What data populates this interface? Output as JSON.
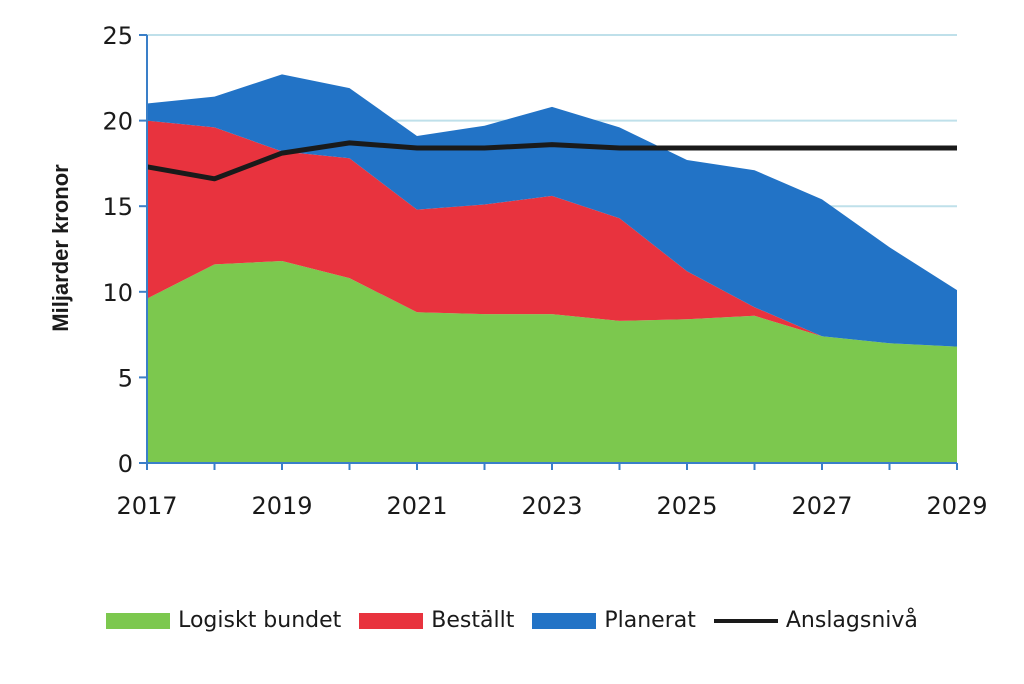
{
  "chart_data": {
    "type": "area",
    "x": [
      2017,
      2018,
      2019,
      2020,
      2021,
      2022,
      2023,
      2024,
      2025,
      2026,
      2027,
      2028,
      2029
    ],
    "x_ticks": [
      2017,
      2019,
      2021,
      2023,
      2025,
      2027,
      2029
    ],
    "x_tick_labels": [
      "2017",
      "2019",
      "2021",
      "2023",
      "2025",
      "2027",
      "2029"
    ],
    "ylim": [
      0,
      25
    ],
    "y_ticks": [
      0,
      5,
      10,
      15,
      20,
      25
    ],
    "y_tick_labels": [
      "0",
      "5",
      "10",
      "15",
      "20",
      "25"
    ],
    "ylabel": "Miljarder kronor",
    "stacked": true,
    "grid": "horizontal",
    "legend_position": "bottom",
    "series": [
      {
        "name": "Logiskt bundet",
        "type": "area",
        "color": "#7cc84e",
        "values": [
          9.6,
          11.6,
          11.8,
          10.8,
          8.8,
          8.7,
          8.7,
          8.3,
          8.4,
          8.6,
          7.4,
          7.0,
          6.8
        ]
      },
      {
        "name": "Beställt",
        "type": "area",
        "color": "#e8333e",
        "values": [
          10.4,
          8.0,
          6.4,
          7.0,
          6.0,
          6.4,
          6.9,
          6.0,
          2.8,
          0.5,
          0.0,
          0.0,
          0.0
        ]
      },
      {
        "name": "Planerat",
        "type": "area",
        "color": "#2273c6",
        "values": [
          1.0,
          1.8,
          4.5,
          4.1,
          4.3,
          4.6,
          5.2,
          5.3,
          6.5,
          8.0,
          8.0,
          5.6,
          3.3
        ]
      },
      {
        "name": "Anslagsnivå",
        "type": "line",
        "color": "#1a1a1a",
        "values": [
          17.3,
          16.6,
          18.1,
          18.7,
          18.4,
          18.4,
          18.6,
          18.4,
          18.4,
          18.4,
          18.4,
          18.4,
          18.4
        ]
      }
    ]
  }
}
